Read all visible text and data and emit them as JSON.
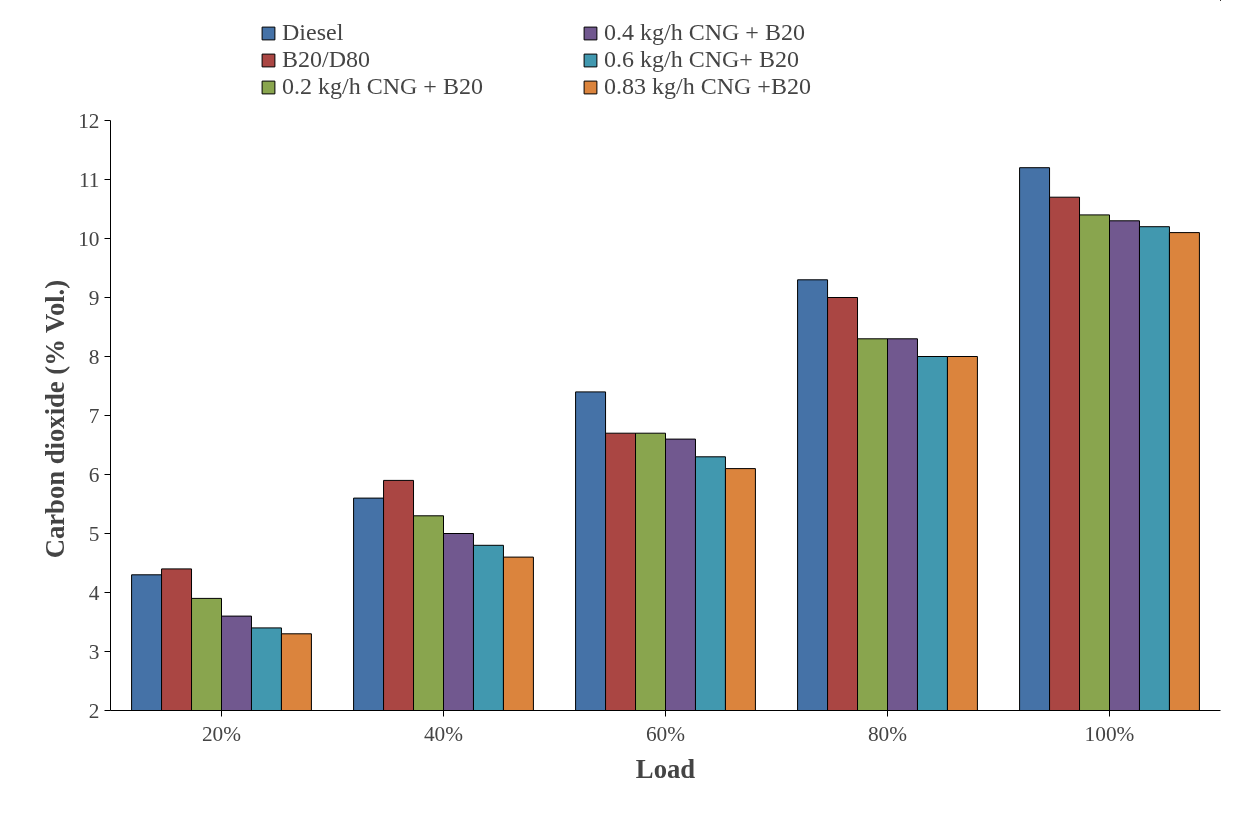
{
  "chart_data": {
    "type": "bar",
    "xlabel": "Load",
    "ylabel": "Carbon dioxide  (% Vol.)",
    "categories": [
      "20%",
      "40%",
      "60%",
      "80%",
      "100%"
    ],
    "series": [
      {
        "name": "Diesel",
        "color": "#4572a7",
        "values": [
          4.3,
          5.6,
          7.4,
          9.3,
          11.2
        ]
      },
      {
        "name": "B20/D80",
        "color": "#aa4643",
        "values": [
          4.4,
          5.9,
          6.7,
          9.0,
          10.7
        ]
      },
      {
        "name": "0.2 kg/h CNG + B20",
        "color": "#89a54e",
        "values": [
          3.9,
          5.3,
          6.7,
          8.3,
          10.4
        ]
      },
      {
        "name": "0.4 kg/h CNG + B20",
        "color": "#71588f",
        "values": [
          3.6,
          5.0,
          6.6,
          8.3,
          10.3
        ]
      },
      {
        "name": "0.6 kg/h CNG+ B20",
        "color": "#4198af",
        "values": [
          3.4,
          4.8,
          6.3,
          8.0,
          10.2
        ]
      },
      {
        "name": "0.83 kg/h CNG +B20",
        "color": "#db843d",
        "values": [
          3.3,
          4.6,
          6.1,
          8.0,
          10.1
        ]
      }
    ],
    "ylim": [
      2,
      12
    ],
    "yticks": [
      2,
      3,
      4,
      5,
      6,
      7,
      8,
      9,
      10,
      11,
      12
    ],
    "grid": false,
    "legend": "top"
  }
}
